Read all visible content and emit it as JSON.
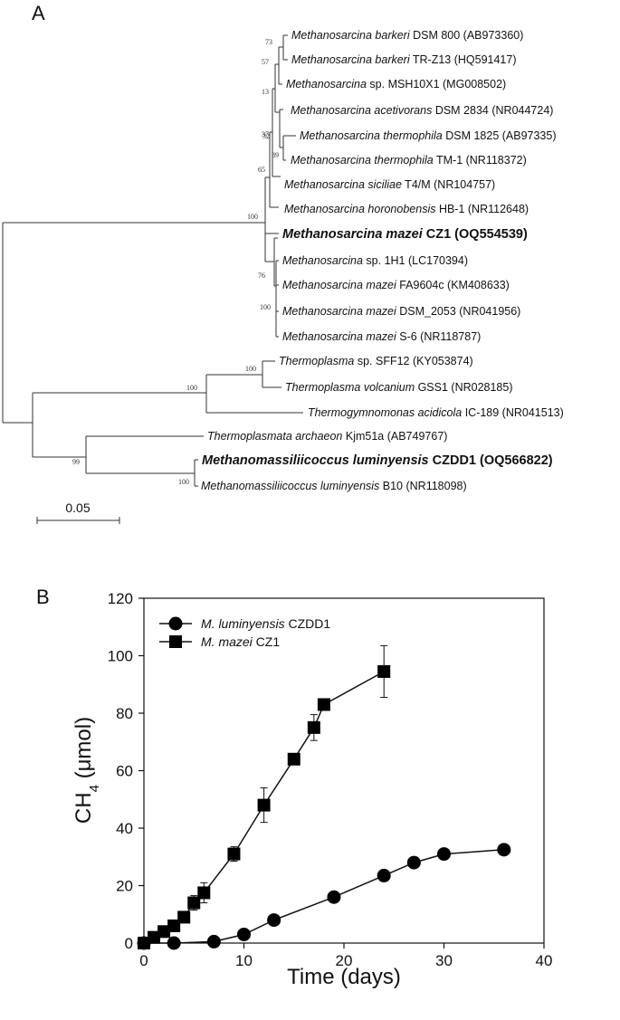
{
  "panel_labels": {
    "a": "A",
    "b": "B"
  },
  "tree": {
    "scale_label": "0.05",
    "leaves": [
      {
        "italic": "Methanosarcina barkeri",
        "rest": " DSM 800 (AB973360)",
        "bold": false
      },
      {
        "italic": "Methanosarcina barkeri",
        "rest": " TR-Z13 (HQ591417)",
        "bold": false
      },
      {
        "italic": "Methanosarcina",
        "rest": " sp. MSH10X1 (MG008502)",
        "bold": false
      },
      {
        "italic": "Methanosarcina acetivorans",
        "rest": " DSM 2834 (NR044724)",
        "bold": false
      },
      {
        "italic": "Methanosarcina thermophila",
        "rest": " DSM 1825 (AB97335)",
        "bold": false
      },
      {
        "italic": "Methanosarcina thermophila",
        "rest": " TM-1 (NR118372)",
        "bold": false
      },
      {
        "italic": "Methanosarcina siciliae",
        "rest": " T4/M (NR104757)",
        "bold": false
      },
      {
        "italic": "Methanosarcina horonobensis",
        "rest": " HB-1 (NR112648)",
        "bold": false
      },
      {
        "italic": "Methanosarcina mazei",
        "rest": " CZ1 (OQ554539)",
        "bold": true
      },
      {
        "italic": "Methanosarcina",
        "rest": " sp. 1H1 (LC170394)",
        "bold": false
      },
      {
        "italic": "Methanosarcina mazei",
        "rest": " FA9604c (KM408633)",
        "bold": false
      },
      {
        "italic": "Methanosarcina mazei",
        "rest": " DSM_2053 (NR041956)",
        "bold": false
      },
      {
        "italic": "Methanosarcina mazei",
        "rest": " S-6 (NR118787)",
        "bold": false
      },
      {
        "italic": "Thermoplasma",
        "rest": " sp. SFF12 (KY053874)",
        "bold": false
      },
      {
        "italic": "Thermoplasma volcanium",
        "rest": " GSS1 (NR028185)",
        "bold": false
      },
      {
        "italic": "Thermogymnomonas acidicola",
        "rest": " IC-189 (NR041513)",
        "bold": false
      },
      {
        "italic": "Thermoplasmata archaeon",
        "rest": " Kjm51a (AB749767)",
        "bold": false
      },
      {
        "italic": "Methanomassiliicoccus luminyensis",
        "rest": " CZDD1 (OQ566822)",
        "bold": true
      },
      {
        "italic": "Methanomassiliicoccus luminyensis",
        "rest": " B10 (NR118098)",
        "bold": false
      }
    ],
    "bootstrap": [
      "73",
      "57",
      "13",
      "37",
      "32",
      "89",
      "65",
      "100",
      "76",
      "100",
      "100",
      "100",
      "99",
      "100"
    ]
  },
  "chart_data": {
    "type": "line",
    "xlabel": "Time (days)",
    "ylabel": "CH",
    "ylabel_sub": "4",
    "ylabel_unit": " (μmol)",
    "xlim": [
      0,
      40
    ],
    "ylim": [
      0,
      120
    ],
    "xticks": [
      "0",
      "10",
      "20",
      "30",
      "40"
    ],
    "yticks": [
      "0",
      "20",
      "40",
      "60",
      "80",
      "100",
      "120"
    ],
    "grid": false,
    "legend_position": "top-left",
    "series": [
      {
        "name_italic": "M. luminyensis",
        "name_rest": " CZDD1",
        "marker": "circle",
        "x": [
          0,
          3,
          7,
          10,
          13,
          19,
          24,
          27,
          30,
          36
        ],
        "y": [
          0,
          0,
          0.5,
          3,
          8,
          16,
          23.5,
          28,
          31,
          32.5
        ],
        "err": [
          0,
          0,
          0,
          0,
          0,
          0,
          0,
          0,
          0,
          0
        ]
      },
      {
        "name_italic": "M. mazei",
        "name_rest": " CZ1",
        "marker": "square",
        "x": [
          0,
          1,
          2,
          3,
          4,
          5,
          6,
          9,
          12,
          15,
          17,
          18,
          24
        ],
        "y": [
          0,
          2,
          4,
          6,
          9,
          14,
          17.5,
          31,
          48,
          64,
          75,
          83,
          94.5
        ],
        "err": [
          0,
          0.5,
          0.8,
          1,
          1.5,
          2.5,
          3.5,
          2.5,
          6,
          1.5,
          4.5,
          1.5,
          9
        ]
      }
    ]
  }
}
